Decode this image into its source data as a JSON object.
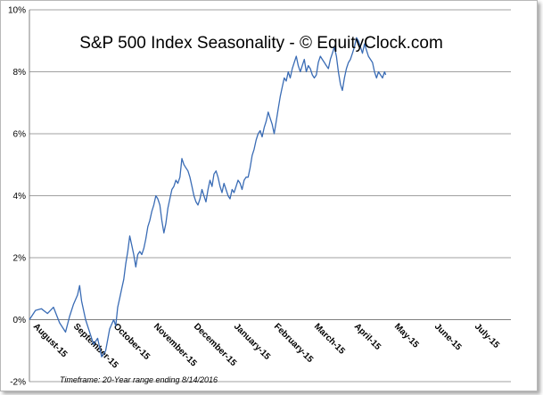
{
  "chart_data": {
    "type": "line",
    "title": "S&P 500 Index Seasonality - © EquityClock.com",
    "footnote": "Timeframe: 20-Year range ending 8/14/2016",
    "ylim": [
      -2,
      10
    ],
    "yticks": [
      "-2%",
      "0%",
      "2%",
      "4%",
      "6%",
      "8%",
      "10%"
    ],
    "grid": true,
    "x_categories": [
      "August-15",
      "September-15",
      "October-15",
      "November-15",
      "December-15",
      "January-15",
      "February-15",
      "March-15",
      "April-15",
      "May-15",
      "June-15",
      "July-15"
    ],
    "series": [
      {
        "color": "#3a6cb5",
        "points": [
          [
            0.0,
            0.0
          ],
          [
            0.15,
            0.3
          ],
          [
            0.3,
            0.35
          ],
          [
            0.45,
            0.2
          ],
          [
            0.6,
            0.4
          ],
          [
            0.75,
            -0.1
          ],
          [
            0.9,
            -0.4
          ],
          [
            1.0,
            0.1
          ],
          [
            1.1,
            0.5
          ],
          [
            1.2,
            0.8
          ],
          [
            1.25,
            1.1
          ],
          [
            1.3,
            0.6
          ],
          [
            1.4,
            0.0
          ],
          [
            1.5,
            -0.4
          ],
          [
            1.6,
            -0.8
          ],
          [
            1.7,
            -0.6
          ],
          [
            1.8,
            -1.2
          ],
          [
            1.9,
            -1.0
          ],
          [
            2.0,
            -0.3
          ],
          [
            2.1,
            0.0
          ],
          [
            2.15,
            -0.2
          ],
          [
            2.2,
            0.4
          ],
          [
            2.25,
            0.7
          ],
          [
            2.3,
            1.0
          ],
          [
            2.35,
            1.3
          ],
          [
            2.4,
            1.8
          ],
          [
            2.45,
            2.2
          ],
          [
            2.5,
            2.7
          ],
          [
            2.55,
            2.4
          ],
          [
            2.6,
            2.1
          ],
          [
            2.65,
            1.7
          ],
          [
            2.7,
            2.1
          ],
          [
            2.75,
            2.2
          ],
          [
            2.8,
            2.1
          ],
          [
            2.85,
            2.3
          ],
          [
            2.9,
            2.6
          ],
          [
            2.95,
            3.0
          ],
          [
            3.0,
            3.2
          ],
          [
            3.05,
            3.5
          ],
          [
            3.1,
            3.7
          ],
          [
            3.15,
            4.0
          ],
          [
            3.2,
            3.9
          ],
          [
            3.25,
            3.7
          ],
          [
            3.3,
            3.2
          ],
          [
            3.35,
            2.8
          ],
          [
            3.4,
            3.1
          ],
          [
            3.45,
            3.6
          ],
          [
            3.5,
            3.9
          ],
          [
            3.55,
            4.2
          ],
          [
            3.6,
            4.3
          ],
          [
            3.65,
            4.5
          ],
          [
            3.7,
            4.4
          ],
          [
            3.75,
            4.6
          ],
          [
            3.8,
            5.2
          ],
          [
            3.85,
            5.0
          ],
          [
            3.9,
            4.9
          ],
          [
            3.95,
            4.8
          ],
          [
            4.0,
            4.6
          ],
          [
            4.05,
            4.3
          ],
          [
            4.1,
            4.0
          ],
          [
            4.15,
            3.8
          ],
          [
            4.2,
            3.7
          ],
          [
            4.25,
            3.9
          ],
          [
            4.3,
            4.2
          ],
          [
            4.35,
            4.0
          ],
          [
            4.4,
            3.8
          ],
          [
            4.45,
            4.2
          ],
          [
            4.5,
            4.5
          ],
          [
            4.55,
            4.3
          ],
          [
            4.6,
            4.7
          ],
          [
            4.65,
            4.8
          ],
          [
            4.7,
            4.6
          ],
          [
            4.75,
            4.3
          ],
          [
            4.8,
            4.1
          ],
          [
            4.85,
            4.4
          ],
          [
            4.9,
            4.2
          ],
          [
            4.95,
            4.0
          ],
          [
            5.0,
            3.9
          ],
          [
            5.05,
            4.2
          ],
          [
            5.1,
            4.1
          ],
          [
            5.15,
            4.3
          ],
          [
            5.2,
            4.5
          ],
          [
            5.25,
            4.4
          ],
          [
            5.3,
            4.2
          ],
          [
            5.35,
            4.5
          ],
          [
            5.4,
            4.6
          ],
          [
            5.45,
            4.6
          ],
          [
            5.5,
            4.9
          ],
          [
            5.55,
            5.3
          ],
          [
            5.6,
            5.5
          ],
          [
            5.65,
            5.8
          ],
          [
            5.7,
            6.0
          ],
          [
            5.75,
            6.1
          ],
          [
            5.8,
            5.9
          ],
          [
            5.85,
            6.2
          ],
          [
            5.9,
            6.4
          ],
          [
            5.95,
            6.7
          ],
          [
            6.0,
            6.5
          ],
          [
            6.05,
            6.3
          ],
          [
            6.1,
            6.0
          ],
          [
            6.15,
            6.4
          ],
          [
            6.2,
            6.8
          ],
          [
            6.25,
            7.2
          ],
          [
            6.3,
            7.5
          ],
          [
            6.35,
            7.8
          ],
          [
            6.4,
            7.7
          ],
          [
            6.45,
            8.0
          ],
          [
            6.5,
            7.8
          ],
          [
            6.55,
            8.1
          ],
          [
            6.6,
            8.3
          ],
          [
            6.65,
            8.5
          ],
          [
            6.7,
            8.2
          ],
          [
            6.75,
            8.0
          ],
          [
            6.8,
            8.2
          ],
          [
            6.85,
            8.4
          ],
          [
            6.9,
            8.0
          ],
          [
            6.95,
            8.2
          ],
          [
            7.0,
            8.1
          ],
          [
            7.05,
            7.9
          ],
          [
            7.1,
            7.8
          ],
          [
            7.15,
            7.9
          ],
          [
            7.2,
            8.3
          ],
          [
            7.25,
            8.5
          ],
          [
            7.3,
            8.4
          ],
          [
            7.35,
            8.3
          ],
          [
            7.4,
            8.2
          ],
          [
            7.45,
            8.1
          ],
          [
            7.5,
            8.4
          ],
          [
            7.55,
            8.6
          ],
          [
            7.6,
            8.8
          ],
          [
            7.65,
            8.5
          ],
          [
            7.7,
            8.0
          ],
          [
            7.75,
            7.6
          ],
          [
            7.8,
            7.4
          ],
          [
            7.85,
            7.8
          ],
          [
            7.9,
            8.1
          ],
          [
            7.95,
            8.3
          ],
          [
            8.0,
            8.4
          ],
          [
            8.05,
            8.6
          ],
          [
            8.1,
            8.8
          ],
          [
            8.15,
            9.1
          ],
          [
            8.2,
            9.0
          ],
          [
            8.25,
            8.8
          ],
          [
            8.3,
            8.6
          ],
          [
            8.35,
            8.9
          ],
          [
            8.4,
            8.7
          ],
          [
            8.45,
            8.5
          ],
          [
            8.5,
            8.4
          ],
          [
            8.55,
            8.3
          ],
          [
            8.6,
            8.0
          ],
          [
            8.65,
            7.8
          ],
          [
            8.7,
            8.0
          ],
          [
            8.75,
            7.9
          ],
          [
            8.8,
            7.8
          ],
          [
            8.85,
            8.0
          ],
          [
            8.88,
            7.9
          ]
        ]
      }
    ]
  }
}
